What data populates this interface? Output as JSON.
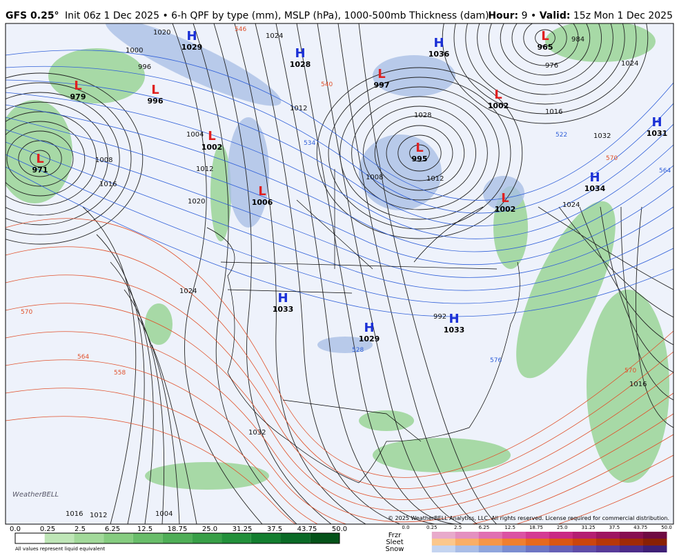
{
  "header": {
    "model": "GFS 0.25°",
    "description": "Init 06z 1 Dec 2025 • 6-h QPF by type (mm), MSLP (hPa), 1000-500mb Thickness (dam)",
    "hour_label": "Hour:",
    "hour": "9",
    "separator": "•",
    "valid_label": "Valid:",
    "valid": "15z Mon 1 Dec 2025"
  },
  "centers": [
    {
      "type": "H",
      "value": "1029"
    },
    {
      "type": "H",
      "value": "1028"
    },
    {
      "type": "H",
      "value": "1036"
    },
    {
      "type": "L",
      "value": "965"
    },
    {
      "type": "L",
      "value": "979"
    },
    {
      "type": "L",
      "value": "996"
    },
    {
      "type": "L",
      "value": "997"
    },
    {
      "type": "L",
      "value": "1002"
    },
    {
      "type": "H",
      "value": "1031"
    },
    {
      "type": "L",
      "value": "1002"
    },
    {
      "type": "L",
      "value": "995"
    },
    {
      "type": "L",
      "value": "971"
    },
    {
      "type": "H",
      "value": "1034"
    },
    {
      "type": "L",
      "value": "1006"
    },
    {
      "type": "L",
      "value": "1002"
    },
    {
      "type": "H",
      "value": "1033"
    },
    {
      "type": "H",
      "value": "1029"
    },
    {
      "type": "H",
      "value": "1033"
    }
  ],
  "isobar_labels": [
    "1020",
    "1000",
    "996",
    "1016",
    "1008",
    "1004",
    "1012",
    "1020",
    "1024",
    "1024",
    "1016",
    "1032",
    "1016",
    "1024",
    "1008",
    "1012",
    "1012",
    "1012",
    "1016",
    "1004",
    "1032",
    "1028",
    "992",
    "984",
    "976",
    "1024"
  ],
  "thickness_labels": [
    "546",
    "540",
    "570",
    "558",
    "564",
    "570",
    "570",
    "576",
    "564",
    "528",
    "522",
    "534"
  ],
  "map": {
    "copyright": "© 2025 WeatherBELL Analytics, LLC. All rights reserved. License required for commercial distribution.",
    "logo": "WeatherBELL"
  },
  "legend": {
    "qpf_ticks": [
      "0.0",
      "0.25",
      "2.5",
      "6.25",
      "12.5",
      "18.75",
      "25.0",
      "31.25",
      "37.5",
      "43.75",
      "50.0"
    ],
    "qpf_colors": [
      "#ffffff",
      "#bfe6b7",
      "#a2d99a",
      "#86cc80",
      "#69bd6a",
      "#4fae57",
      "#389f47",
      "#22903a",
      "#137e2f",
      "#0a6a26",
      "#045219"
    ],
    "note": "All values represent liquid equivalent",
    "ptype_ticks": [
      "0.0",
      "0.25",
      "2.5",
      "6.25",
      "12.5",
      "18.75",
      "25.0",
      "31.25",
      "37.5",
      "43.75",
      "50.0"
    ],
    "ptypes": [
      {
        "name": "Frzr",
        "colors": [
          "#e8aacb",
          "#e490c0",
          "#e070b2",
          "#db52a3",
          "#d43a93",
          "#c92984",
          "#b41e72",
          "#9e1561",
          "#870e51",
          "#6f0a42"
        ]
      },
      {
        "name": "Sleet",
        "colors": [
          "#fbc78c",
          "#f9ae66",
          "#f59648",
          "#ef7f2f",
          "#e6691e",
          "#da5614",
          "#cb450d",
          "#b73709",
          "#a02a06",
          "#892004"
        ]
      },
      {
        "name": "Snow",
        "colors": [
          "#c4d4f0",
          "#a9bde6",
          "#8fa5dc",
          "#7b8dd0",
          "#6d75c3",
          "#6660b6",
          "#5f4ca7",
          "#563a98",
          "#4b2b88",
          "#3e1f75"
        ]
      }
    ]
  }
}
